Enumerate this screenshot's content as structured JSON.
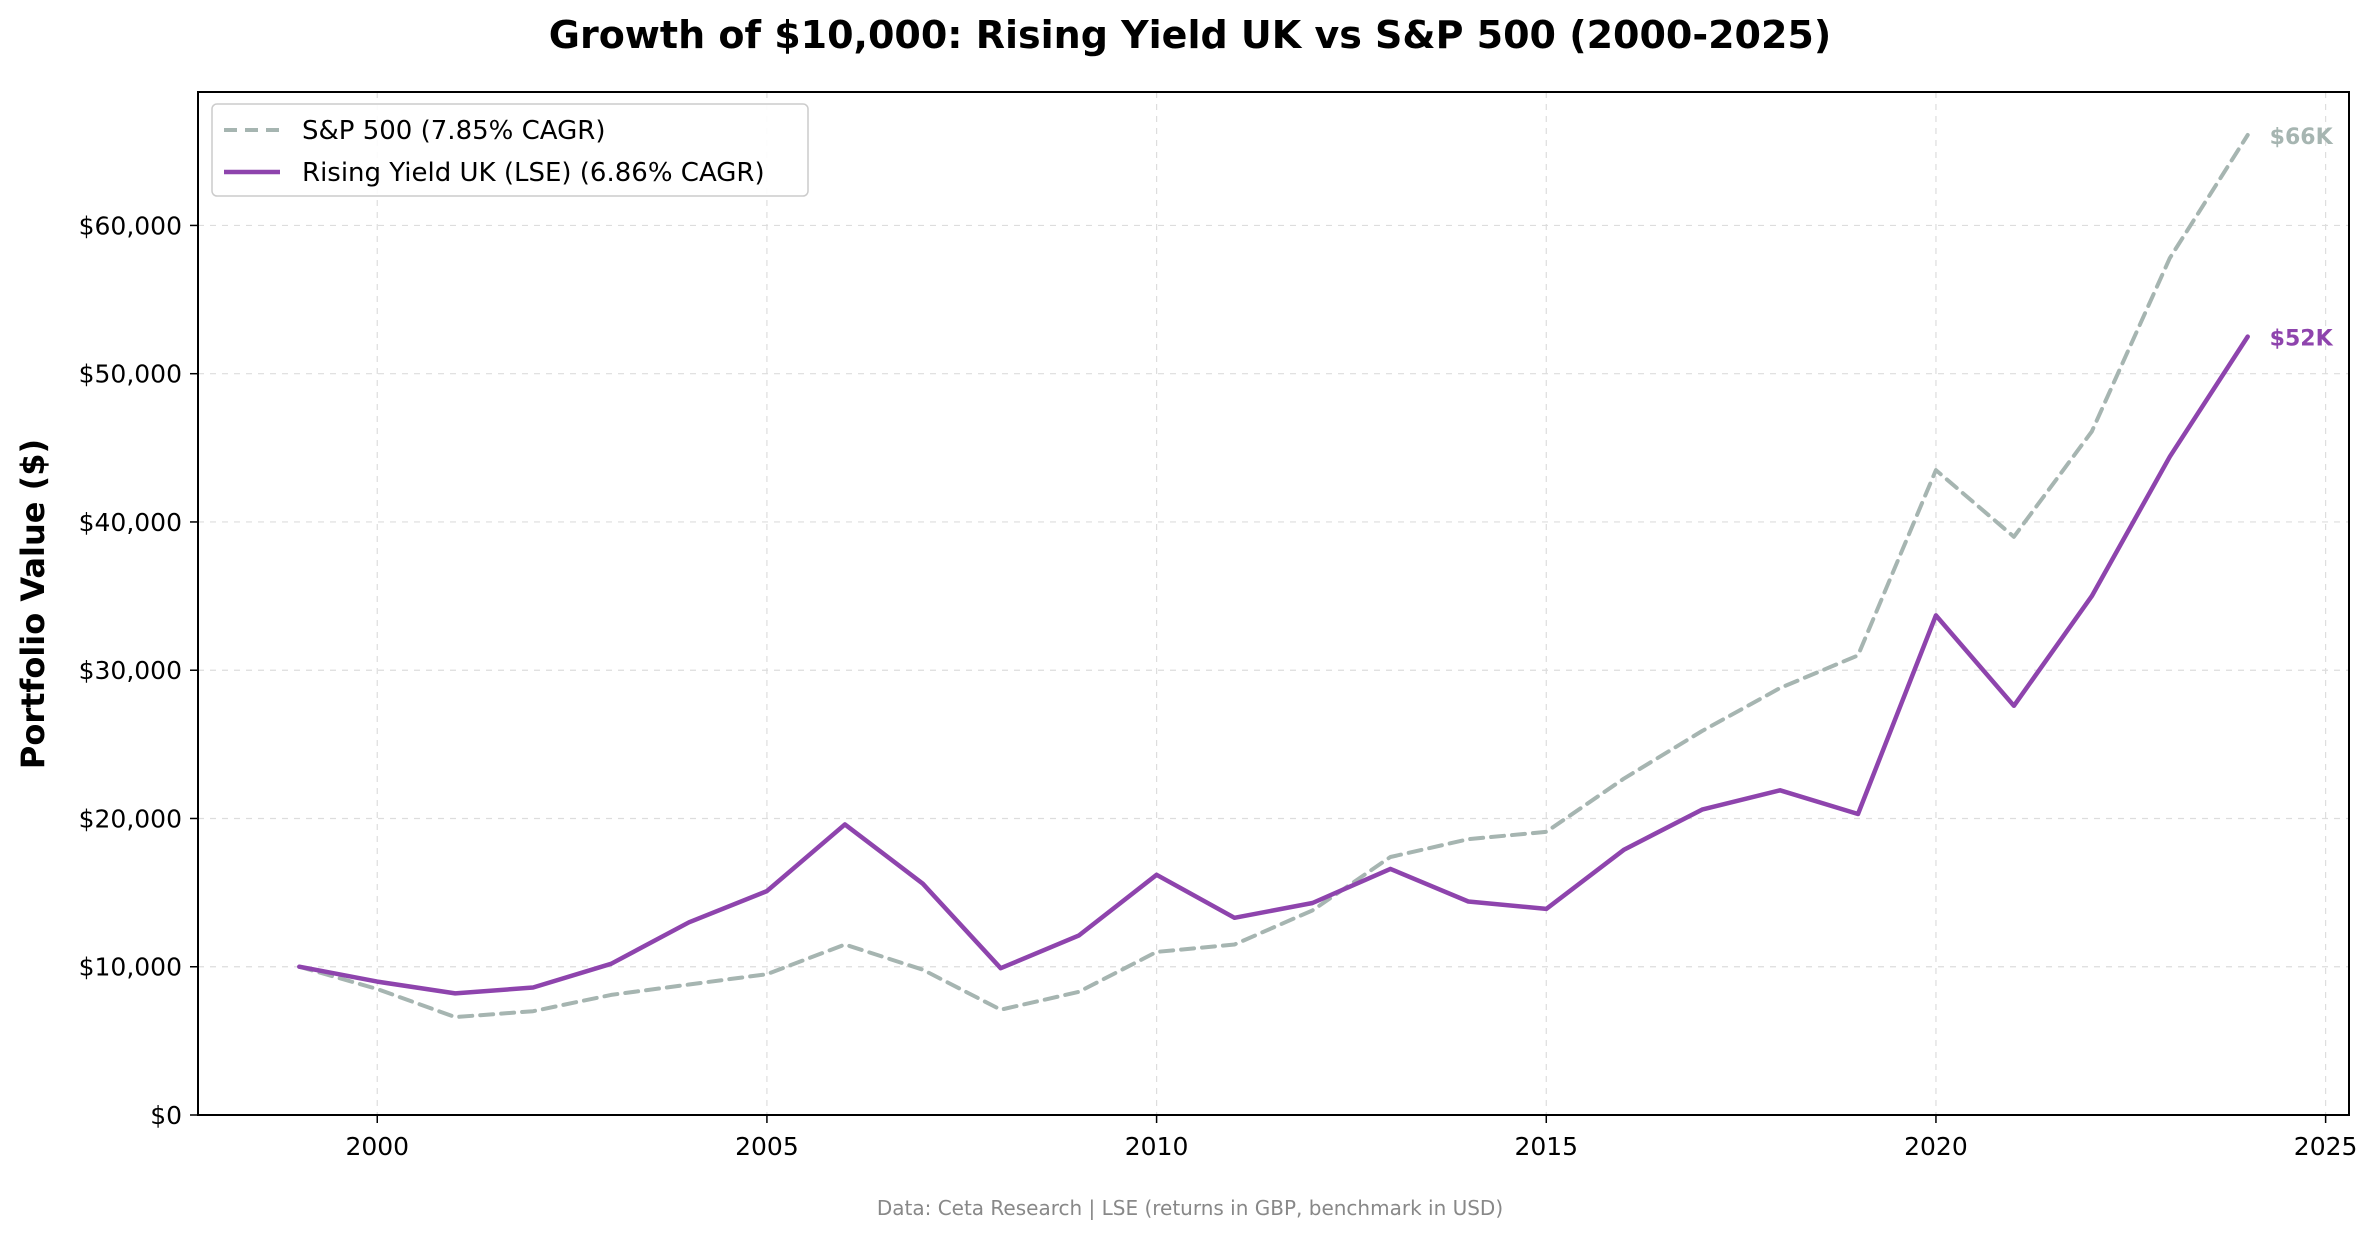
{
  "chart_data": {
    "type": "line",
    "title": "Growth of $10,000: Rising Yield UK vs S&P 500 (2000-2025)",
    "xlabel": "",
    "ylabel": "Portfolio Value ($)",
    "xlim": [
      1997.7,
      2025.3
    ],
    "ylim": [
      0,
      69000
    ],
    "xticks": [
      2000,
      2005,
      2010,
      2015,
      2020,
      2025
    ],
    "xtick_labels": [
      "2000",
      "2005",
      "2010",
      "2015",
      "2020",
      "2025"
    ],
    "yticks": [
      0,
      10000,
      20000,
      30000,
      40000,
      50000,
      60000
    ],
    "ytick_labels": [
      "$0",
      "$10,000",
      "$20,000",
      "$30,000",
      "$40,000",
      "$50,000",
      "$60,000"
    ],
    "grid": true,
    "legend_position": "top-left",
    "x": [
      1999,
      2000,
      2001,
      2002,
      2003,
      2004,
      2005,
      2006,
      2007,
      2008,
      2009,
      2010,
      2011,
      2012,
      2013,
      2014,
      2015,
      2016,
      2017,
      2018,
      2019,
      2020,
      2021,
      2022,
      2023,
      2024
    ],
    "series": [
      {
        "name": "S&P 500 (7.85% CAGR)",
        "color": "#a6b5b1",
        "dash": true,
        "end_label": "$66K",
        "values": [
          10000,
          8500,
          6600,
          7000,
          8100,
          8800,
          9500,
          11500,
          9800,
          7100,
          8300,
          11000,
          11500,
          13800,
          17400,
          18600,
          19100,
          22700,
          25900,
          28800,
          31000,
          43500,
          39000,
          46100,
          57800,
          66100
        ]
      },
      {
        "name": "Rising Yield UK (LSE) (6.86% CAGR)",
        "color": "#8e44ad",
        "dash": false,
        "end_label": "$52K",
        "values": [
          10000,
          9000,
          8200,
          8600,
          10200,
          13000,
          15100,
          19600,
          15600,
          9900,
          12100,
          16200,
          13300,
          14300,
          16600,
          14400,
          13900,
          17900,
          20600,
          21900,
          20300,
          33700,
          27600,
          35000,
          44400,
          52500
        ]
      }
    ],
    "footer": "Data: Ceta Research | LSE (returns in GBP, benchmark in USD)"
  }
}
